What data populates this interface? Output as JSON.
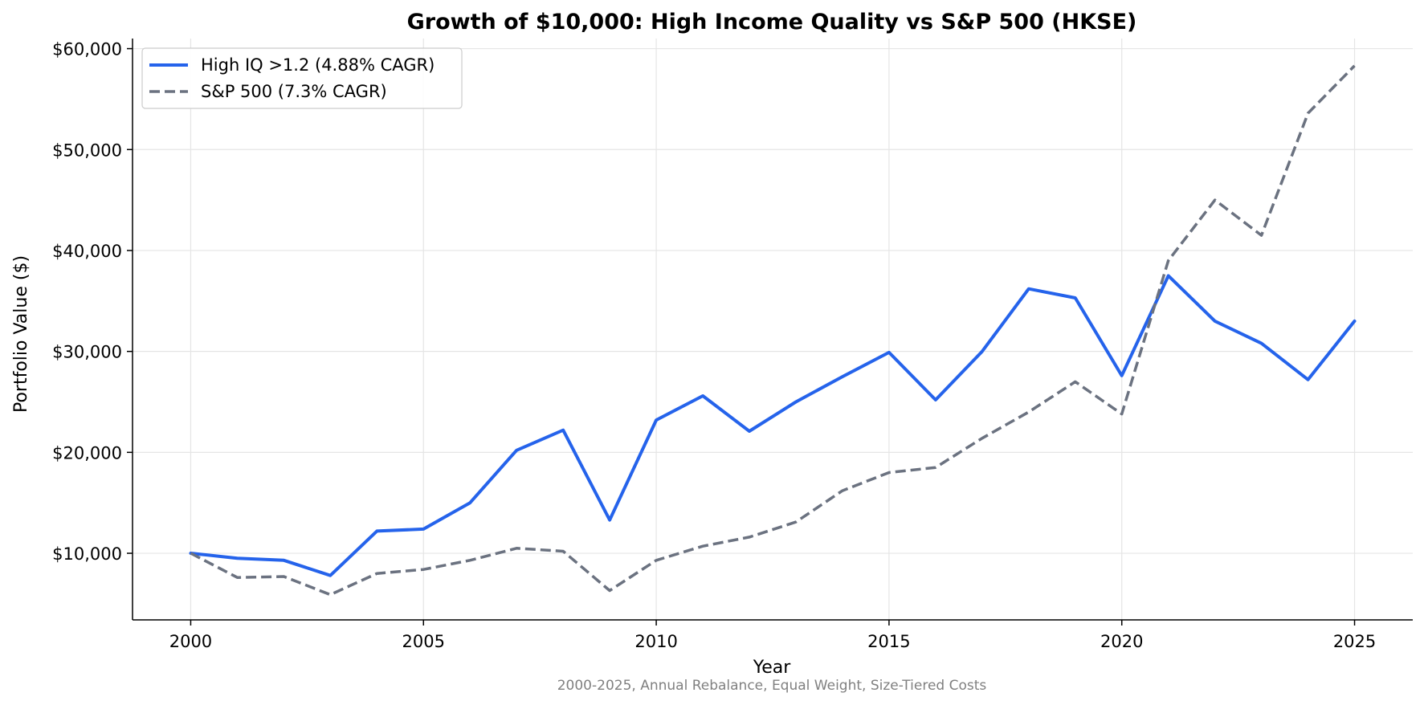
{
  "chart_data": {
    "type": "line",
    "title": "Growth of $10,000: High Income Quality vs S&P 500 (HKSE)",
    "xlabel": "Year",
    "ylabel": "Portfolio Value ($)",
    "caption": "2000-2025, Annual Rebalance, Equal Weight, Size-Tiered Costs",
    "xlim": [
      1998.75,
      2026.25
    ],
    "ylim": [
      3400,
      61000
    ],
    "x_ticks": [
      2000,
      2005,
      2010,
      2015,
      2020,
      2025
    ],
    "x_tick_labels": [
      "2000",
      "2005",
      "2010",
      "2015",
      "2020",
      "2025"
    ],
    "y_ticks": [
      10000,
      20000,
      30000,
      40000,
      50000,
      60000
    ],
    "y_tick_labels": [
      "$10,000",
      "$20,000",
      "$30,000",
      "$40,000",
      "$50,000",
      "$60,000"
    ],
    "grid": true,
    "legend_position": "top-left",
    "x": [
      2000,
      2001,
      2002,
      2003,
      2004,
      2005,
      2006,
      2007,
      2008,
      2009,
      2010,
      2011,
      2012,
      2013,
      2014,
      2015,
      2016,
      2017,
      2018,
      2019,
      2020,
      2021,
      2022,
      2023,
      2024,
      2025
    ],
    "series": [
      {
        "name": "High IQ >1.2 (4.88% CAGR)",
        "color": "#2563eb",
        "style": "solid",
        "values": [
          10000,
          9500,
          9300,
          7800,
          12200,
          12400,
          15000,
          20200,
          22200,
          13300,
          23200,
          25600,
          22100,
          25000,
          27500,
          29900,
          25200,
          30000,
          36200,
          35300,
          27600,
          37500,
          33000,
          30800,
          27200,
          33000
        ]
      },
      {
        "name": "S&P 500 (7.3% CAGR)",
        "color": "#6b7280",
        "style": "dashed",
        "values": [
          10000,
          7600,
          7700,
          5900,
          8000,
          8400,
          9300,
          10500,
          10200,
          6300,
          9300,
          10700,
          11600,
          13100,
          16200,
          18000,
          18500,
          21400,
          24000,
          27000,
          23800,
          39000,
          45000,
          41500,
          53600,
          58300
        ]
      }
    ]
  }
}
